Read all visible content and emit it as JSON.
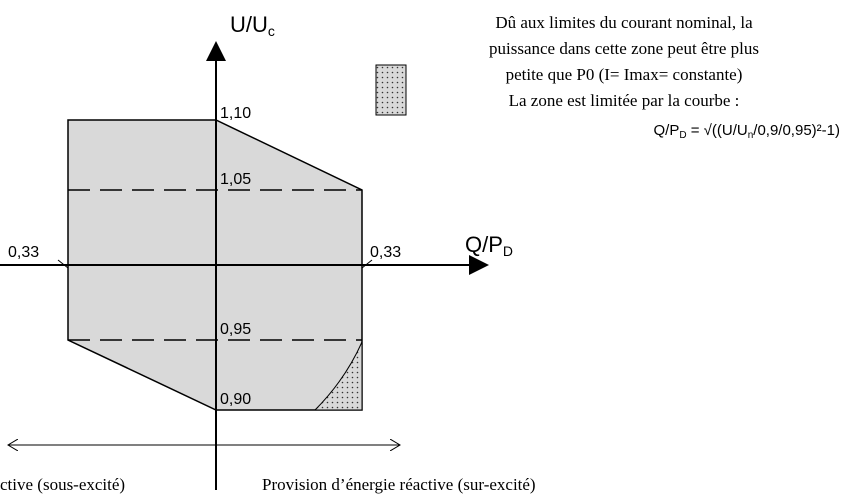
{
  "diagram": {
    "y_axis_label": {
      "main": "U/U",
      "sub": "c"
    },
    "x_axis_label": {
      "main": "Q/P",
      "sub": "D"
    },
    "levels": {
      "top": "1,10",
      "upper": "1,05",
      "lower": "0,95",
      "bottom": "0,90"
    },
    "q_limits": {
      "left": "0,33",
      "right": "0,33"
    },
    "note": [
      "Dû aux limites du courant nominal, la",
      "puissance dans cette zone peut être plus",
      "petite que P0 (I= Imax= constante)",
      "La zone est limitée par la courbe :"
    ],
    "formula": {
      "p1": "Q/P",
      "p1_sub": "D",
      "p2": " = √((U/U",
      "p2_sub": "n",
      "p3": "/0,9/0,95)²-1)"
    },
    "bottom_left": "ctive (sous-excité)",
    "bottom_right": "Provision d’énergie réactive (sur-excité)"
  }
}
